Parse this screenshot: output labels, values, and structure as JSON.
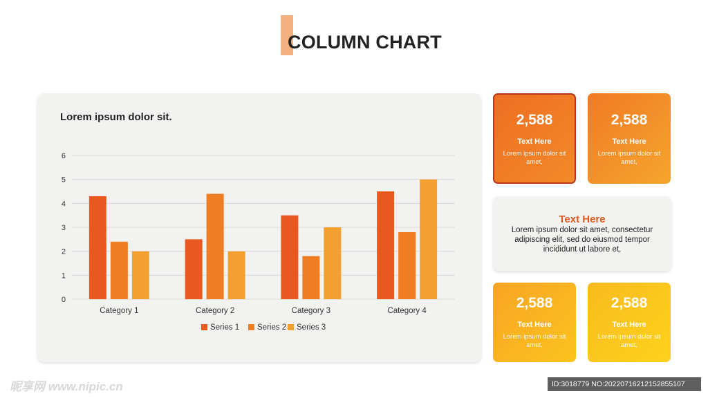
{
  "page": {
    "title": "COLUMN CHART"
  },
  "chart_panel": {
    "heading": "Lorem ipsum dolor sit."
  },
  "chart_data": {
    "type": "bar",
    "categories": [
      "Category 1",
      "Category 2",
      "Category 3",
      "Category 4"
    ],
    "series": [
      {
        "name": "Series 1",
        "values": [
          4.3,
          2.5,
          3.5,
          4.5
        ],
        "color": "#e8581f"
      },
      {
        "name": "Series 2",
        "values": [
          2.4,
          4.4,
          1.8,
          2.8
        ],
        "color": "#ef7d24"
      },
      {
        "name": "Series 3",
        "values": [
          2.0,
          2.0,
          3.0,
          5.0
        ],
        "color": "#f3a030"
      }
    ],
    "title": "",
    "xlabel": "",
    "ylabel": "",
    "ylim": [
      0,
      6
    ],
    "yticks": [
      0,
      1,
      2,
      3,
      4,
      5,
      6
    ],
    "grid": true,
    "legend": "bottom"
  },
  "cards": [
    {
      "value": "2,588",
      "label": "Text Here",
      "desc": "Lorem ipsum dolor sit amet,",
      "gradient": [
        "#ee6e22",
        "#f28a2a"
      ]
    },
    {
      "value": "2,588",
      "label": "Text Here",
      "desc": "Lorem ipsum dolor sit amet,",
      "gradient": [
        "#f07a25",
        "#f5a52d"
      ]
    },
    {
      "value": "2,588",
      "label": "Text Here",
      "desc": "Lorem ipsum dolor sit amet,",
      "gradient": [
        "#f7a523",
        "#fcc31e"
      ]
    },
    {
      "value": "2,588",
      "label": "Text Here",
      "desc": "Lorem ipsum dolor sit amet,",
      "gradient": [
        "#f9bb1f",
        "#fdd21c"
      ]
    }
  ],
  "info_panel": {
    "title": "Text Here",
    "body": "Lorem ipsum dolor sit amet, consectetur adipiscing elit, sed do eiusmod tempor incididunt ut labore et,"
  },
  "watermark": {
    "left": "昵享网 www.nipic.cn",
    "right": "ID:3018779 NO:20220716212152855107"
  }
}
